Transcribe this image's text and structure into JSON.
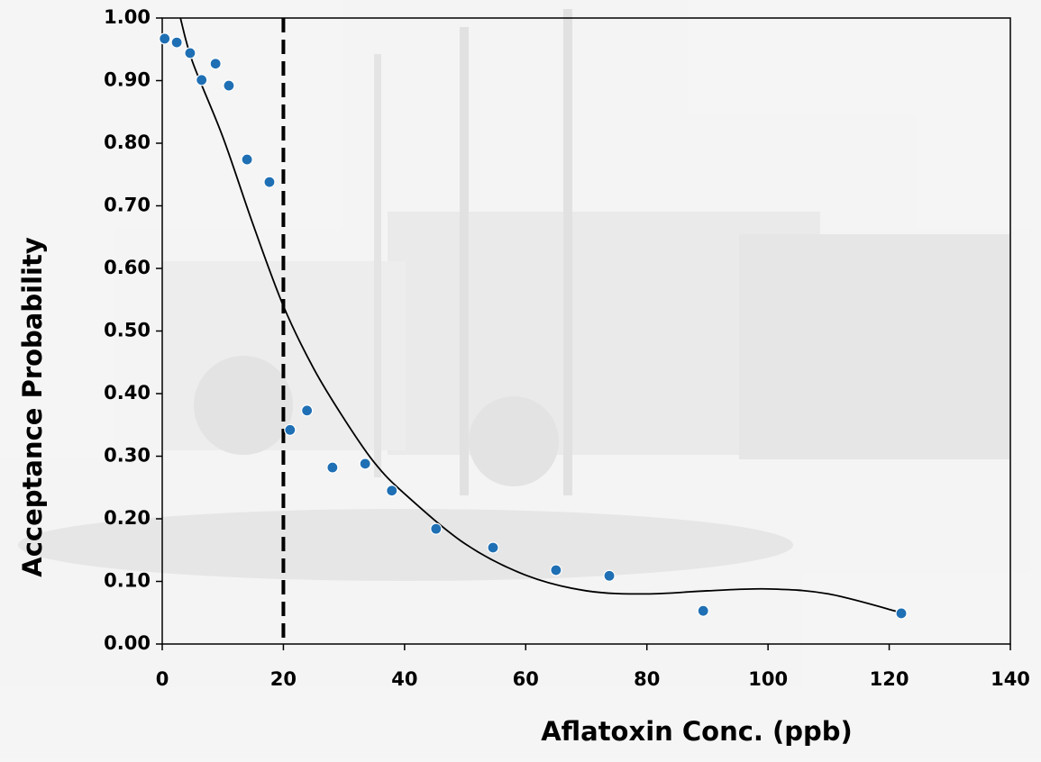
{
  "chart_data": {
    "type": "scatter",
    "x_label": "Aflatoxin Conc. (ppb)",
    "y_label": "Acceptance Probability",
    "xlim": [
      0,
      140
    ],
    "xticks": [
      0,
      20,
      40,
      60,
      80,
      100,
      120,
      140
    ],
    "ylim": [
      0,
      1
    ],
    "yticks": [
      {
        "value": 0,
        "label": "0.00"
      },
      {
        "value": 0.1,
        "label": "0.10"
      },
      {
        "value": 0.2,
        "label": "0.20"
      },
      {
        "value": 0.3,
        "label": "0.30"
      },
      {
        "value": 0.4,
        "label": "0.40"
      },
      {
        "value": 0.5,
        "label": "0.50"
      },
      {
        "value": 0.6,
        "label": "0.60"
      },
      {
        "value": 0.7,
        "label": "0.70"
      },
      {
        "value": 0.8,
        "label": "0.80"
      },
      {
        "value": 0.9,
        "label": "0.90"
      },
      {
        "value": 1,
        "label": "1.00"
      }
    ],
    "points": {
      "color": "#1f6fb4",
      "x": [
        0.4,
        2.4,
        4.6,
        6.5,
        8.8,
        11.0,
        14.0,
        17.7,
        21.1,
        23.9,
        28.1,
        33.5,
        37.9,
        45.2,
        54.6,
        65.0,
        73.8,
        89.3,
        122.0
      ],
      "y": [
        0.967,
        0.961,
        0.944,
        0.901,
        0.927,
        0.892,
        0.774,
        0.738,
        0.342,
        0.373,
        0.282,
        0.288,
        0.245,
        0.184,
        0.154,
        0.118,
        0.109,
        0.053,
        0.049
      ]
    },
    "fit_curve": {
      "color": "#000000",
      "x": [
        3,
        5,
        10,
        15,
        20,
        25,
        30,
        35,
        40,
        50,
        60,
        70,
        80,
        90,
        100,
        110,
        122
      ],
      "y": [
        1.0,
        0.93,
        0.81,
        0.67,
        0.54,
        0.44,
        0.36,
        0.29,
        0.24,
        0.16,
        0.11,
        0.085,
        0.08,
        0.085,
        0.088,
        0.08,
        0.05
      ]
    },
    "reference_line": {
      "x": 20,
      "color": "#000000",
      "style": "dashed"
    }
  }
}
